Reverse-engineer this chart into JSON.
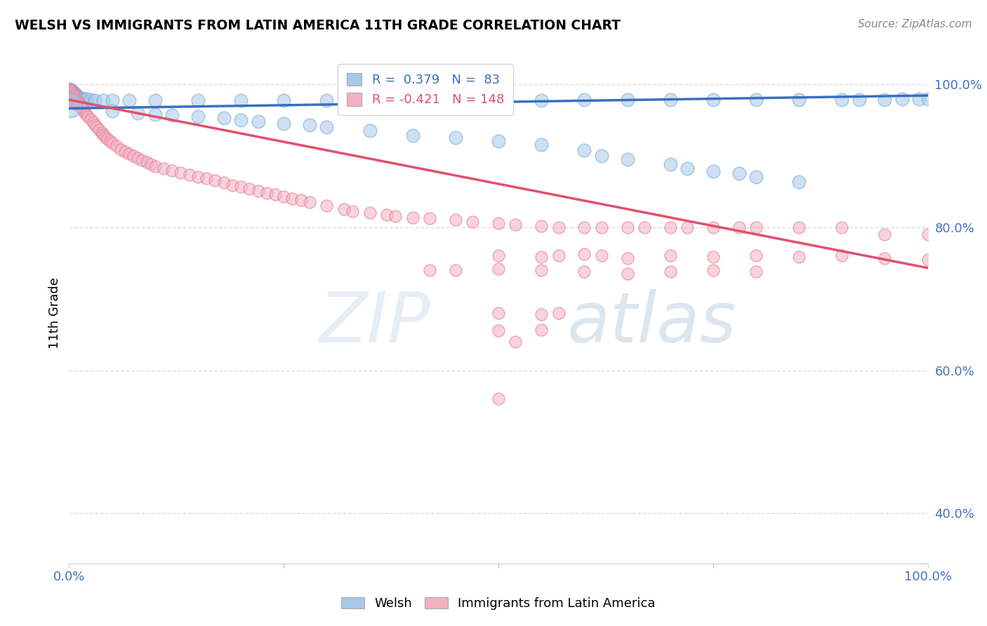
{
  "title": "WELSH VS IMMIGRANTS FROM LATIN AMERICA 11TH GRADE CORRELATION CHART",
  "source": "Source: ZipAtlas.com",
  "ylabel": "11th Grade",
  "legend_blue": {
    "R": 0.379,
    "N": 83,
    "label": "Welsh"
  },
  "legend_pink": {
    "R": -0.421,
    "N": 148,
    "label": "Immigrants from Latin America"
  },
  "blue_color": "#a8c8e8",
  "pink_color": "#f4b0c0",
  "blue_line_color": "#3a6fbf",
  "pink_line_color": "#e05070",
  "blue_points": [
    [
      0.001,
      0.993
    ],
    [
      0.001,
      0.985
    ],
    [
      0.002,
      0.99
    ],
    [
      0.002,
      0.985
    ],
    [
      0.003,
      0.99
    ],
    [
      0.003,
      0.985
    ],
    [
      0.003,
      0.978
    ],
    [
      0.004,
      0.99
    ],
    [
      0.004,
      0.985
    ],
    [
      0.004,
      0.978
    ],
    [
      0.005,
      0.988
    ],
    [
      0.005,
      0.982
    ],
    [
      0.006,
      0.987
    ],
    [
      0.006,
      0.98
    ],
    [
      0.007,
      0.986
    ],
    [
      0.007,
      0.978
    ],
    [
      0.008,
      0.985
    ],
    [
      0.009,
      0.983
    ],
    [
      0.01,
      0.982
    ],
    [
      0.012,
      0.981
    ],
    [
      0.015,
      0.98
    ],
    [
      0.018,
      0.979
    ],
    [
      0.02,
      0.979
    ],
    [
      0.025,
      0.978
    ],
    [
      0.03,
      0.977
    ],
    [
      0.04,
      0.977
    ],
    [
      0.05,
      0.977
    ],
    [
      0.07,
      0.977
    ],
    [
      0.1,
      0.977
    ],
    [
      0.15,
      0.977
    ],
    [
      0.2,
      0.977
    ],
    [
      0.25,
      0.977
    ],
    [
      0.3,
      0.977
    ],
    [
      0.35,
      0.977
    ],
    [
      0.4,
      0.977
    ],
    [
      0.45,
      0.977
    ],
    [
      0.5,
      0.977
    ],
    [
      0.55,
      0.977
    ],
    [
      0.6,
      0.978
    ],
    [
      0.65,
      0.978
    ],
    [
      0.7,
      0.978
    ],
    [
      0.75,
      0.978
    ],
    [
      0.8,
      0.978
    ],
    [
      0.85,
      0.978
    ],
    [
      0.9,
      0.978
    ],
    [
      0.92,
      0.978
    ],
    [
      0.95,
      0.978
    ],
    [
      0.97,
      0.979
    ],
    [
      0.99,
      0.979
    ],
    [
      1.0,
      0.979
    ],
    [
      0.05,
      0.963
    ],
    [
      0.08,
      0.96
    ],
    [
      0.1,
      0.958
    ],
    [
      0.12,
      0.957
    ],
    [
      0.15,
      0.955
    ],
    [
      0.18,
      0.953
    ],
    [
      0.2,
      0.95
    ],
    [
      0.22,
      0.948
    ],
    [
      0.25,
      0.945
    ],
    [
      0.28,
      0.943
    ],
    [
      0.3,
      0.94
    ],
    [
      0.35,
      0.935
    ],
    [
      0.4,
      0.928
    ],
    [
      0.45,
      0.925
    ],
    [
      0.5,
      0.92
    ],
    [
      0.55,
      0.915
    ],
    [
      0.6,
      0.908
    ],
    [
      0.62,
      0.9
    ],
    [
      0.65,
      0.895
    ],
    [
      0.7,
      0.888
    ],
    [
      0.72,
      0.882
    ],
    [
      0.75,
      0.878
    ],
    [
      0.78,
      0.875
    ],
    [
      0.8,
      0.87
    ],
    [
      0.85,
      0.863
    ],
    [
      0.0,
      0.98
    ]
  ],
  "pink_points": [
    [
      0.0,
      0.993
    ],
    [
      0.0,
      0.988
    ],
    [
      0.001,
      0.992
    ],
    [
      0.001,
      0.987
    ],
    [
      0.001,
      0.982
    ],
    [
      0.002,
      0.991
    ],
    [
      0.002,
      0.986
    ],
    [
      0.002,
      0.981
    ],
    [
      0.003,
      0.99
    ],
    [
      0.003,
      0.985
    ],
    [
      0.003,
      0.98
    ],
    [
      0.004,
      0.988
    ],
    [
      0.004,
      0.983
    ],
    [
      0.004,
      0.978
    ],
    [
      0.005,
      0.986
    ],
    [
      0.005,
      0.981
    ],
    [
      0.005,
      0.976
    ],
    [
      0.006,
      0.984
    ],
    [
      0.006,
      0.979
    ],
    [
      0.006,
      0.974
    ],
    [
      0.007,
      0.982
    ],
    [
      0.007,
      0.977
    ],
    [
      0.007,
      0.972
    ],
    [
      0.008,
      0.98
    ],
    [
      0.008,
      0.975
    ],
    [
      0.009,
      0.978
    ],
    [
      0.009,
      0.973
    ],
    [
      0.01,
      0.976
    ],
    [
      0.01,
      0.971
    ],
    [
      0.011,
      0.974
    ],
    [
      0.012,
      0.972
    ],
    [
      0.013,
      0.97
    ],
    [
      0.014,
      0.968
    ],
    [
      0.015,
      0.966
    ],
    [
      0.016,
      0.964
    ],
    [
      0.018,
      0.961
    ],
    [
      0.02,
      0.958
    ],
    [
      0.022,
      0.955
    ],
    [
      0.025,
      0.951
    ],
    [
      0.028,
      0.947
    ],
    [
      0.03,
      0.943
    ],
    [
      0.032,
      0.94
    ],
    [
      0.035,
      0.936
    ],
    [
      0.038,
      0.932
    ],
    [
      0.04,
      0.929
    ],
    [
      0.042,
      0.926
    ],
    [
      0.045,
      0.923
    ],
    [
      0.048,
      0.92
    ],
    [
      0.05,
      0.917
    ],
    [
      0.055,
      0.913
    ],
    [
      0.06,
      0.909
    ],
    [
      0.065,
      0.906
    ],
    [
      0.07,
      0.903
    ],
    [
      0.075,
      0.9
    ],
    [
      0.08,
      0.897
    ],
    [
      0.085,
      0.894
    ],
    [
      0.09,
      0.891
    ],
    [
      0.095,
      0.888
    ],
    [
      0.1,
      0.885
    ],
    [
      0.11,
      0.882
    ],
    [
      0.12,
      0.879
    ],
    [
      0.13,
      0.876
    ],
    [
      0.14,
      0.873
    ],
    [
      0.15,
      0.87
    ],
    [
      0.16,
      0.868
    ],
    [
      0.17,
      0.865
    ],
    [
      0.18,
      0.862
    ],
    [
      0.19,
      0.859
    ],
    [
      0.2,
      0.857
    ],
    [
      0.21,
      0.854
    ],
    [
      0.22,
      0.851
    ],
    [
      0.23,
      0.848
    ],
    [
      0.24,
      0.846
    ],
    [
      0.25,
      0.843
    ],
    [
      0.26,
      0.84
    ],
    [
      0.27,
      0.838
    ],
    [
      0.28,
      0.835
    ],
    [
      0.3,
      0.83
    ],
    [
      0.32,
      0.825
    ],
    [
      0.33,
      0.822
    ],
    [
      0.35,
      0.82
    ],
    [
      0.37,
      0.817
    ],
    [
      0.38,
      0.815
    ],
    [
      0.4,
      0.813
    ],
    [
      0.42,
      0.812
    ],
    [
      0.45,
      0.81
    ],
    [
      0.47,
      0.808
    ],
    [
      0.5,
      0.806
    ],
    [
      0.52,
      0.804
    ],
    [
      0.55,
      0.802
    ],
    [
      0.57,
      0.8
    ],
    [
      0.6,
      0.8
    ],
    [
      0.62,
      0.8
    ],
    [
      0.65,
      0.8
    ],
    [
      0.67,
      0.8
    ],
    [
      0.7,
      0.8
    ],
    [
      0.72,
      0.8
    ],
    [
      0.75,
      0.8
    ],
    [
      0.78,
      0.8
    ],
    [
      0.8,
      0.8
    ],
    [
      0.85,
      0.8
    ],
    [
      0.9,
      0.8
    ],
    [
      0.95,
      0.79
    ],
    [
      1.0,
      0.79
    ],
    [
      0.5,
      0.76
    ],
    [
      0.55,
      0.758
    ],
    [
      0.57,
      0.76
    ],
    [
      0.6,
      0.762
    ],
    [
      0.62,
      0.76
    ],
    [
      0.65,
      0.757
    ],
    [
      0.7,
      0.76
    ],
    [
      0.75,
      0.758
    ],
    [
      0.8,
      0.76
    ],
    [
      0.85,
      0.758
    ],
    [
      0.9,
      0.76
    ],
    [
      0.95,
      0.757
    ],
    [
      1.0,
      0.755
    ],
    [
      0.42,
      0.74
    ],
    [
      0.45,
      0.74
    ],
    [
      0.5,
      0.742
    ],
    [
      0.55,
      0.74
    ],
    [
      0.6,
      0.738
    ],
    [
      0.65,
      0.735
    ],
    [
      0.7,
      0.738
    ],
    [
      0.75,
      0.74
    ],
    [
      0.8,
      0.738
    ],
    [
      0.5,
      0.68
    ],
    [
      0.55,
      0.678
    ],
    [
      0.57,
      0.68
    ],
    [
      0.5,
      0.655
    ],
    [
      0.55,
      0.656
    ],
    [
      0.52,
      0.64
    ],
    [
      0.5,
      0.56
    ]
  ],
  "blue_line": [
    [
      0.0,
      0.966
    ],
    [
      1.0,
      0.984
    ]
  ],
  "pink_line": [
    [
      0.0,
      0.978
    ],
    [
      1.0,
      0.743
    ]
  ],
  "xlim": [
    0.0,
    1.0
  ],
  "ylim": [
    0.33,
    1.03
  ],
  "ytick_positions": [
    0.4,
    0.6,
    0.8,
    1.0
  ],
  "ytick_labels": [
    "40.0%",
    "60.0%",
    "80.0%",
    "100.0%"
  ],
  "xtick_positions": [
    0.0,
    1.0
  ],
  "xtick_labels": [
    "0.0%",
    "100.0%"
  ],
  "grid_color": "#dddddd",
  "tick_color": "#4472c4"
}
